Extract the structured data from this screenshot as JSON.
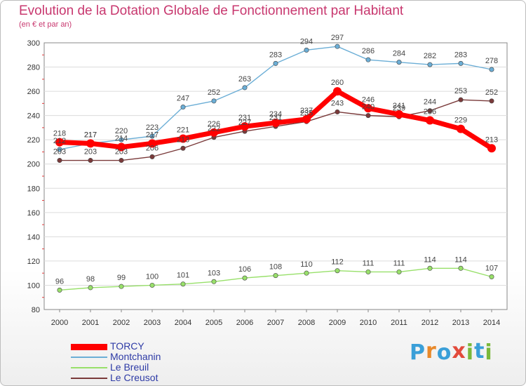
{
  "header": {
    "title": "Evolution de la Dotation Globale de Fonctionnement par Habitant",
    "subtitle": "(en € et par an)"
  },
  "brand": {
    "letters": [
      "P",
      "r",
      "o",
      "x",
      "i",
      "t",
      "i"
    ],
    "colors": [
      "#3a9fd8",
      "#e8892a",
      "#3a9fd8",
      "#e24a3b",
      "#7ab83a",
      "#3a9fd8",
      "#7ab83a"
    ]
  },
  "chart_data": {
    "type": "line",
    "title": "Evolution de la Dotation Globale de Fonctionnement par Habitant",
    "subtitle": "(en € et par an)",
    "xlabel": "",
    "ylabel": "",
    "x": [
      2000,
      2001,
      2002,
      2003,
      2004,
      2005,
      2006,
      2007,
      2008,
      2009,
      2010,
      2011,
      2012,
      2013,
      2014
    ],
    "ylim": [
      80,
      300
    ],
    "yticks": [
      80,
      100,
      120,
      140,
      160,
      180,
      200,
      220,
      240,
      260,
      280,
      300
    ],
    "grid": "horizontal",
    "legend_position": "bottom-left",
    "series": [
      {
        "name": "TORCY",
        "color": "#ff0000",
        "values": [
          218,
          217,
          214,
          217,
          221,
          226,
          231,
          234,
          237,
          260,
          246,
          241,
          236,
          229,
          213
        ]
      },
      {
        "name": "Montchanin",
        "color": "#6baed6",
        "values": [
          212,
          217,
          220,
          223,
          247,
          252,
          263,
          283,
          294,
          297,
          286,
          284,
          282,
          283,
          278
        ]
      },
      {
        "name": "Le Breuil",
        "color": "#98e06a",
        "values": [
          96,
          98,
          99,
          100,
          101,
          103,
          106,
          108,
          110,
          112,
          111,
          111,
          114,
          114,
          107
        ]
      },
      {
        "name": "Le Creusot",
        "color": "#7a3a3a",
        "values": [
          203,
          203,
          203,
          206,
          213,
          222,
          227,
          231,
          235,
          243,
          240,
          239,
          244,
          253,
          252
        ]
      }
    ]
  }
}
